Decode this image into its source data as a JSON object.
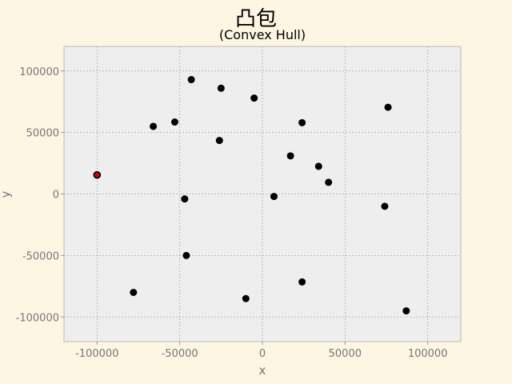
{
  "chart_data": {
    "type": "scatter",
    "title": "凸包",
    "subtitle": "(Convex Hull)",
    "xlabel": "x",
    "ylabel": "y",
    "xlim": [
      -120000,
      120000
    ],
    "ylim": [
      -120000,
      120000
    ],
    "xticks": [
      -100000,
      -50000,
      0,
      50000,
      100000
    ],
    "yticks": [
      -100000,
      -50000,
      0,
      50000,
      100000
    ],
    "xtick_labels": [
      "-100000",
      "-50000",
      "0",
      "50000",
      "100000"
    ],
    "ytick_labels": [
      "-100000",
      "-50000",
      "0",
      "50000",
      "100000"
    ],
    "grid": true,
    "colors": {
      "background": "#fdf6e3",
      "plot_background": "#eeeeee",
      "grid": "#b0b0b0",
      "point": "#000000",
      "highlight": "#cc0000"
    },
    "points": [
      {
        "x": -100000,
        "y": 15500,
        "highlight": true
      },
      {
        "x": -43000,
        "y": 93000
      },
      {
        "x": -25000,
        "y": 86000
      },
      {
        "x": -5000,
        "y": 78000
      },
      {
        "x": 76000,
        "y": 70500
      },
      {
        "x": -66000,
        "y": 55000
      },
      {
        "x": -53000,
        "y": 58500
      },
      {
        "x": 24000,
        "y": 58000
      },
      {
        "x": -26000,
        "y": 43500
      },
      {
        "x": 17000,
        "y": 31000
      },
      {
        "x": 34000,
        "y": 22500
      },
      {
        "x": 40000,
        "y": 9500
      },
      {
        "x": -47000,
        "y": -4000
      },
      {
        "x": 7000,
        "y": -2000
      },
      {
        "x": 74000,
        "y": -10000
      },
      {
        "x": -46000,
        "y": -50000
      },
      {
        "x": 24000,
        "y": -71500
      },
      {
        "x": -78000,
        "y": -80000
      },
      {
        "x": -10000,
        "y": -85000
      },
      {
        "x": 87000,
        "y": -95000
      }
    ]
  }
}
